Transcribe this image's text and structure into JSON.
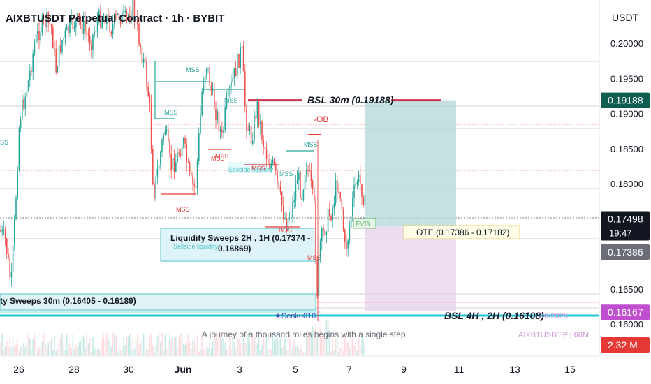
{
  "header": {
    "title": "AIXBTUSDT Perpetual Contract · 1h · BYBIT",
    "currency": "USDT"
  },
  "watermark": {
    "caption": "A journey of a thousand miles begins with a single step",
    "author": "★Senku010",
    "date": "7/6/2025",
    "symbol_tag": "AIXBTUSDT.P | 60M"
  },
  "colors": {
    "up": "#26a69a",
    "down": "#ef5350",
    "bsl": "#d0304f",
    "cyan": "#26c6da",
    "tp_zone": "#b2d8d5",
    "sl_zone": "#e8d4ee"
  },
  "chart_data": {
    "type": "candlestick",
    "y_axis": {
      "range": [
        0.159,
        0.205
      ],
      "ticks": [
        0.2,
        0.195,
        0.19,
        0.185,
        0.18,
        0.165,
        0.16
      ],
      "tick_labels": [
        "0.20000",
        "0.19500",
        "0.19000",
        "0.18500",
        "0.18000",
        "0.16500",
        "0.16000"
      ]
    },
    "x_axis": {
      "ticks": [
        "26",
        "28",
        "30",
        "Jun",
        "3",
        "5",
        "7",
        "9",
        "11",
        "13",
        "15"
      ]
    },
    "price_badges": [
      {
        "label": "0.19188",
        "value": 0.19188,
        "style": "dark-green"
      },
      {
        "label": "0.17498",
        "value": 0.17498,
        "style": "dark",
        "sub": "19:47"
      },
      {
        "label": "0.17386",
        "value": 0.17386,
        "style": "grey"
      },
      {
        "label": "0.16167",
        "value": 0.16167,
        "style": "magenta"
      },
      {
        "label": "2.32 M",
        "value": null,
        "style": "red-volume"
      }
    ],
    "levels": [
      {
        "label": "BSL 30m (0.19188)",
        "value": 0.19188
      },
      {
        "label": "BSL 4H , 2H (0.16108)",
        "value": 0.16108
      },
      {
        "label": "OTE (0.17386 - 0.17182)",
        "range": [
          0.17182,
          0.17386
        ]
      },
      {
        "label": "Liquidity Sweeps 2H , 1H (0.17374 - 0.16869)",
        "range": [
          0.16869,
          0.17374
        ]
      },
      {
        "label": "ty Sweeps 30m (0.16405 - 0.16189)",
        "range": [
          0.16189,
          0.16405
        ]
      }
    ],
    "annotations": [
      "MSS",
      "MSS",
      "MSS",
      "MSS",
      "MSS",
      "MSS",
      "MSS",
      "MSS",
      "MSS",
      "MSS",
      "BOS",
      "-OB",
      "FVG",
      "Sellside liquidity",
      "Sellside liquidity",
      "SS"
    ],
    "legend": "none",
    "grid": false
  }
}
